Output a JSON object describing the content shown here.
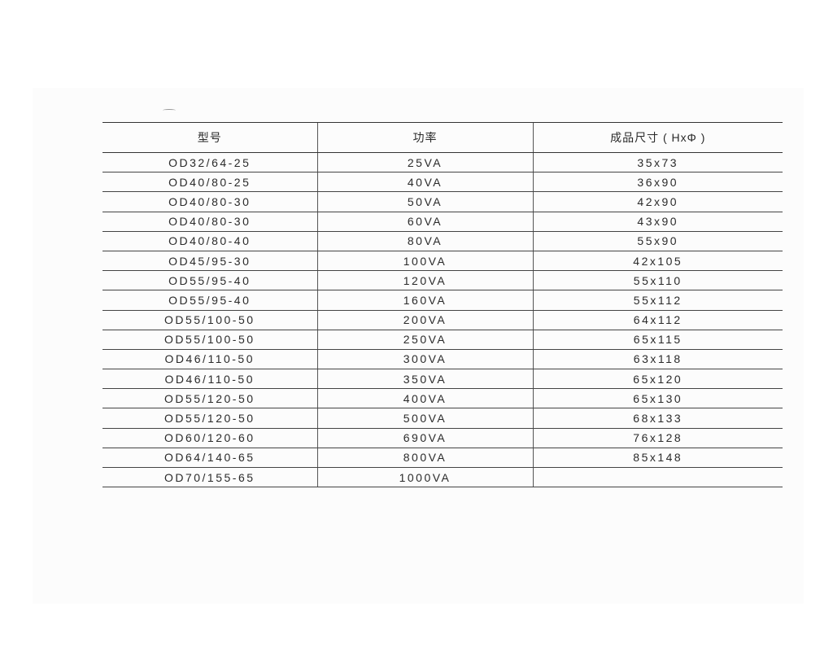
{
  "table": {
    "headers": [
      "型号",
      "功率",
      "成品尺寸 ( HxΦ )"
    ],
    "rows": [
      [
        "OD32/64-25",
        "25VA",
        "35x73"
      ],
      [
        "OD40/80-25",
        "40VA",
        "36x90"
      ],
      [
        "OD40/80-30",
        "50VA",
        "42x90"
      ],
      [
        "OD40/80-30",
        "60VA",
        "43x90"
      ],
      [
        "OD40/80-40",
        "80VA",
        "55x90"
      ],
      [
        "OD45/95-30",
        "100VA",
        "42x105"
      ],
      [
        "OD55/95-40",
        "120VA",
        "55x110"
      ],
      [
        "OD55/95-40",
        "160VA",
        "55x112"
      ],
      [
        "OD55/100-50",
        "200VA",
        "64x112"
      ],
      [
        "OD55/100-50",
        "250VA",
        "65x115"
      ],
      [
        "OD46/110-50",
        "300VA",
        "63x118"
      ],
      [
        "OD46/110-50",
        "350VA",
        "65x120"
      ],
      [
        "OD55/120-50",
        "400VA",
        "65x130"
      ],
      [
        "OD55/120-50",
        "500VA",
        "68x133"
      ],
      [
        "OD60/120-60",
        "690VA",
        "76x128"
      ],
      [
        "OD64/140-65",
        "800VA",
        "85x148"
      ],
      [
        "OD70/155-65",
        "1000VA",
        ""
      ]
    ]
  }
}
